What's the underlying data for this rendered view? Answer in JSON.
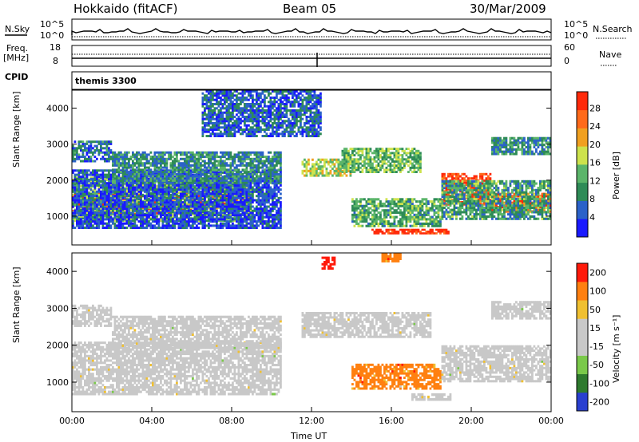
{
  "header": {
    "radar": "Hokkaido (fitACF)",
    "beam": "Beam 05",
    "date": "30/Mar/2009"
  },
  "top_panels": {
    "nsky_label": "N.Sky",
    "nsky_ticks": [
      "10^5",
      "10^0"
    ],
    "nsearch_label": "N.Search",
    "nsearch_ticks": [
      "10^5",
      "10^0"
    ],
    "freq_label_1": "Freq.",
    "freq_label_2": "[MHz]",
    "freq_ticks": [
      "18",
      "8"
    ],
    "nave_label": "Nave",
    "nave_ticks": [
      "60",
      "0"
    ],
    "cpid_label": "CPID",
    "cpid_value": "themis 3300"
  },
  "chart_data": [
    {
      "type": "heatmap",
      "name": "power",
      "ylabel": "Slant Range [km]",
      "yticks": [
        "4000",
        "3000",
        "2000",
        "1000"
      ],
      "ylim": [
        200,
        4500
      ],
      "xlim": [
        0,
        24
      ],
      "colorbar_label": "Power [dB]",
      "colorbar_ticks": [
        "28",
        "24",
        "20",
        "16",
        "12",
        "8",
        "4"
      ],
      "colorbar_colors": [
        "#1a1aff",
        "#2b62c9",
        "#2e8b57",
        "#5bb56a",
        "#cde24c",
        "#f0a020",
        "#ff6a1a",
        "#ff2a0a"
      ],
      "bands": [
        {
          "t0": 0.0,
          "t1": 6.5,
          "r0": 1050,
          "r1": 1650,
          "level": 0.95
        },
        {
          "t0": 6.5,
          "t1": 9.0,
          "r0": 1200,
          "r1": 1900,
          "level": 0.85
        },
        {
          "t0": 0.0,
          "t1": 9.0,
          "r0": 850,
          "r1": 2100,
          "level": 0.45
        },
        {
          "t0": 0.0,
          "t1": 10.5,
          "r0": 650,
          "r1": 2300,
          "level": 0.15
        },
        {
          "t0": 0.0,
          "t1": 2.0,
          "r0": 2500,
          "r1": 3100,
          "level": 0.25
        },
        {
          "t0": 2.0,
          "t1": 10.5,
          "r0": 1900,
          "r1": 2800,
          "level": 0.3
        },
        {
          "t0": 11.5,
          "t1": 14.0,
          "r0": 2100,
          "r1": 2600,
          "level": 0.55
        },
        {
          "t0": 13.5,
          "t1": 17.5,
          "r0": 2200,
          "r1": 2900,
          "level": 0.45
        },
        {
          "t0": 14.0,
          "t1": 18.5,
          "r0": 700,
          "r1": 1500,
          "level": 0.4
        },
        {
          "t0": 15.0,
          "t1": 19.0,
          "r0": 500,
          "r1": 650,
          "level": 0.98
        },
        {
          "t0": 18.5,
          "t1": 21.0,
          "r0": 1300,
          "r1": 2200,
          "level": 0.9
        },
        {
          "t0": 21.0,
          "t1": 24.0,
          "r0": 1100,
          "r1": 1650,
          "level": 0.85
        },
        {
          "t0": 18.5,
          "t1": 24.0,
          "r0": 900,
          "r1": 2000,
          "level": 0.35
        },
        {
          "t0": 21.0,
          "t1": 24.0,
          "r0": 2700,
          "r1": 3200,
          "level": 0.3
        },
        {
          "t0": 6.5,
          "t1": 12.5,
          "r0": 3200,
          "r1": 4500,
          "level": 0.2
        }
      ]
    },
    {
      "type": "heatmap",
      "name": "velocity",
      "ylabel": "Slant Range [km]",
      "yticks": [
        "4000",
        "3000",
        "2000",
        "1000"
      ],
      "ylim": [
        200,
        4500
      ],
      "xlim": [
        0,
        24
      ],
      "xlabel": "Time UT",
      "xticks": [
        "00:00",
        "04:00",
        "08:00",
        "12:00",
        "16:00",
        "20:00",
        "00:00"
      ],
      "colorbar_label": "Velocity [m s⁻¹]",
      "colorbar_ticks": [
        "200",
        "100",
        "50",
        "15",
        "-15",
        "-50",
        "-100",
        "-200"
      ],
      "colorbar_colors": [
        "#2a3fd0",
        "#2e7a2e",
        "#7ac94a",
        "#c8c8c8",
        "#c8c8c8",
        "#f0c030",
        "#ff8010",
        "#ff1a0a"
      ],
      "bands": [
        {
          "t0": 0.0,
          "t1": 10.5,
          "r0": 650,
          "r1": 2100,
          "level": 0.5
        },
        {
          "t0": 2.0,
          "t1": 10.5,
          "r0": 1900,
          "r1": 2800,
          "level": 0.5
        },
        {
          "t0": 11.5,
          "t1": 18.0,
          "r0": 2200,
          "r1": 2900,
          "level": 0.5
        },
        {
          "t0": 12.5,
          "t1": 13.2,
          "r0": 4050,
          "r1": 4400,
          "level": 0.98
        },
        {
          "t0": 15.5,
          "t1": 16.5,
          "r0": 4250,
          "r1": 4500,
          "level": 0.85
        },
        {
          "t0": 14.0,
          "t1": 18.5,
          "r0": 800,
          "r1": 1500,
          "level": 0.75
        },
        {
          "t0": 17.0,
          "t1": 19.0,
          "r0": 500,
          "r1": 700,
          "level": 0.6
        },
        {
          "t0": 18.5,
          "t1": 24.0,
          "r0": 1000,
          "r1": 2000,
          "level": 0.5
        },
        {
          "t0": 0.0,
          "t1": 2.0,
          "r0": 2500,
          "r1": 3100,
          "level": 0.5
        },
        {
          "t0": 21.0,
          "t1": 24.0,
          "r0": 2700,
          "r1": 3200,
          "level": 0.5
        }
      ]
    }
  ]
}
